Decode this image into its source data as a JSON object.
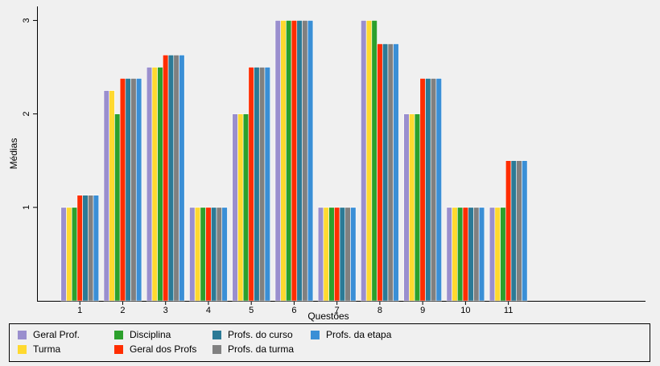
{
  "chart_data": {
    "type": "bar",
    "xlabel": "Questões",
    "ylabel": "Médias",
    "categories": [
      "1",
      "2",
      "3",
      "4",
      "5",
      "6",
      "7",
      "8",
      "9",
      "10",
      "11"
    ],
    "x_axis_extent": 14.2,
    "yticks": [
      1,
      2,
      3
    ],
    "ylim": [
      0.0,
      3.0
    ],
    "grid": false,
    "legend_position": "bottom",
    "series": [
      {
        "name": "Geral Prof.",
        "color": "#9a8fce",
        "values": [
          1,
          2.25,
          2.5,
          1,
          2,
          3,
          1,
          3,
          2,
          1,
          1
        ]
      },
      {
        "name": "Turma",
        "color": "#ffd92f",
        "values": [
          1,
          2.25,
          2.5,
          1,
          2,
          3,
          1,
          3,
          2,
          1,
          1
        ]
      },
      {
        "name": "Disciplina",
        "color": "#2ca02c",
        "values": [
          1,
          2,
          2.5,
          1,
          2,
          3,
          1,
          3,
          2,
          1,
          1
        ]
      },
      {
        "name": "Geral dos Profs",
        "color": "#ff2d00",
        "values": [
          1.13,
          2.38,
          2.63,
          1,
          2.5,
          3,
          1,
          2.75,
          2.38,
          1,
          1.5
        ]
      },
      {
        "name": "Profs. do curso",
        "color": "#2b7a96",
        "values": [
          1.13,
          2.38,
          2.63,
          1,
          2.5,
          3,
          1,
          2.75,
          2.38,
          1,
          1.5
        ]
      },
      {
        "name": "Profs. da turma",
        "color": "#808080",
        "values": [
          1.13,
          2.38,
          2.63,
          1,
          2.5,
          3,
          1,
          2.75,
          2.38,
          1,
          1.5
        ]
      },
      {
        "name": "Profs. da etapa",
        "color": "#3a8fd6",
        "values": [
          1.13,
          2.38,
          2.63,
          1,
          2.5,
          3,
          1,
          2.75,
          2.38,
          1,
          1.5
        ]
      }
    ]
  },
  "legend": {
    "items": [
      {
        "label": "Geral Prof.",
        "color": "#9a8fce"
      },
      {
        "label": "Turma",
        "color": "#ffd92f"
      },
      {
        "label": "Disciplina",
        "color": "#2ca02c"
      },
      {
        "label": "Geral dos Profs",
        "color": "#ff2d00"
      },
      {
        "label": "Profs. do curso",
        "color": "#2b7a96"
      },
      {
        "label": "Profs. da turma",
        "color": "#808080"
      },
      {
        "label": "Profs. da etapa",
        "color": "#3a8fd6"
      }
    ]
  }
}
